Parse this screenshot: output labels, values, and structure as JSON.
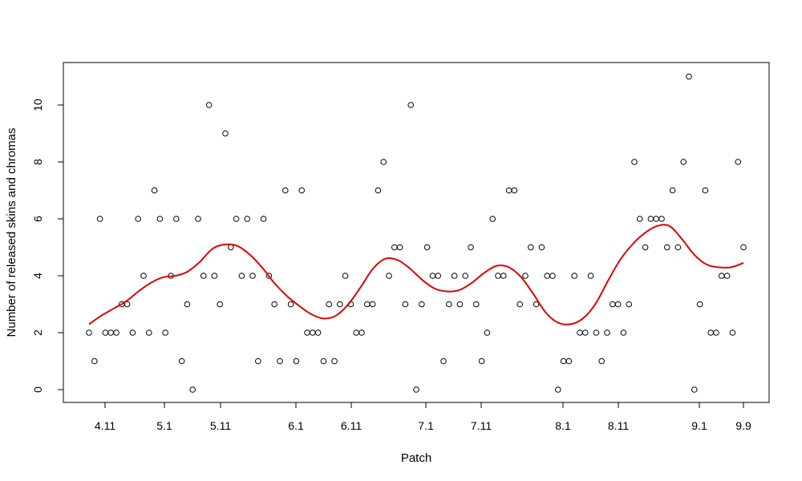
{
  "chart_data": {
    "type": "scatter",
    "title": "",
    "xlabel": "Patch",
    "ylabel": "Number of released skins and chromas",
    "x_ticks": [
      "4.11",
      "5.1",
      "5.11",
      "6.1",
      "6.11",
      "7.1",
      "7.11",
      "8.1",
      "8.11",
      "9.1",
      "9.9"
    ],
    "y_ticks": [
      0,
      2,
      4,
      6,
      8,
      10
    ],
    "ylim": [
      -0.6,
      11.6
    ],
    "grid": false,
    "legend": "none",
    "colors": {
      "points": "#000000",
      "trend": "#e00000"
    },
    "points": [
      2,
      1,
      6,
      2,
      2,
      2,
      3,
      3,
      2,
      6,
      4,
      2,
      7,
      6,
      2,
      4,
      6,
      1,
      3,
      0,
      6,
      4,
      10,
      4,
      3,
      9,
      5,
      6,
      4,
      6,
      4,
      1,
      6,
      4,
      3,
      1,
      7,
      3,
      1,
      7,
      2,
      2,
      2,
      1,
      3,
      1,
      3,
      4,
      3,
      2,
      2,
      3,
      3,
      7,
      8,
      4,
      5,
      5,
      3,
      10,
      0,
      3,
      5,
      4,
      4,
      1,
      3,
      4,
      3,
      4,
      5,
      3,
      1,
      2,
      6,
      4,
      4,
      7,
      7,
      3,
      4,
      5,
      3,
      5,
      4,
      4,
      0,
      1,
      1,
      4,
      2,
      2,
      4,
      2,
      1,
      2,
      3,
      3,
      2,
      3,
      8,
      6,
      5,
      6,
      6,
      6,
      5,
      7,
      5,
      8,
      11,
      0,
      3,
      7,
      2,
      2,
      4,
      4,
      2,
      8,
      5
    ],
    "trend": [
      2.3,
      2.6,
      2.85,
      3.1,
      3.45,
      3.75,
      3.95,
      4.0,
      4.15,
      4.5,
      4.95,
      5.1,
      5.05,
      4.75,
      4.3,
      3.75,
      3.3,
      2.95,
      2.65,
      2.5,
      2.6,
      3.0,
      3.6,
      4.25,
      4.6,
      4.55,
      4.25,
      3.85,
      3.55,
      3.45,
      3.5,
      3.75,
      4.1,
      4.35,
      4.3,
      3.95,
      3.35,
      2.7,
      2.35,
      2.3,
      2.5,
      3.0,
      3.8,
      4.55,
      5.1,
      5.5,
      5.75,
      5.75,
      5.3,
      4.75,
      4.4,
      4.3,
      4.3,
      4.45
    ]
  }
}
